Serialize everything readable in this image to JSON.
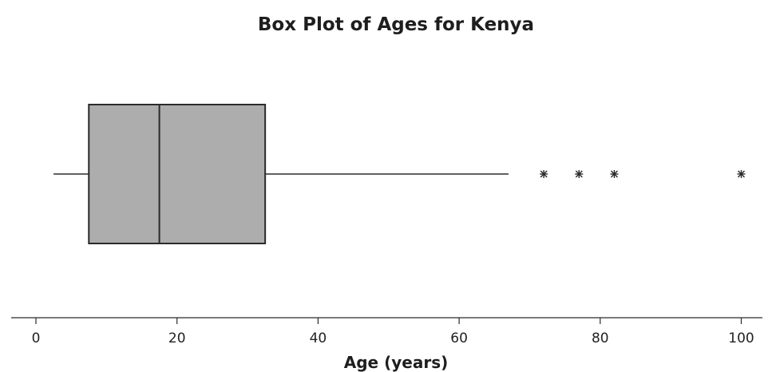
{
  "chart_data": {
    "type": "box",
    "title": "Box Plot of Ages for Kenya",
    "xlabel": "Age (years)",
    "ylabel": "",
    "xlim": [
      -4,
      103
    ],
    "xticks": [
      0,
      20,
      40,
      60,
      80,
      100
    ],
    "tick_labels": [
      "0",
      "20",
      "40",
      "60",
      "80",
      "100"
    ],
    "grid": false,
    "orientation": "horizontal",
    "box": {
      "whisker_low": 2.5,
      "q1": 7.5,
      "median": 17.5,
      "q3": 32.5,
      "whisker_high": 67
    },
    "outliers": [
      72,
      77,
      82,
      100
    ],
    "colors": {
      "box_fill": "#adadad",
      "stroke": "#2b2b2b",
      "text": "#1e1e1e"
    }
  }
}
